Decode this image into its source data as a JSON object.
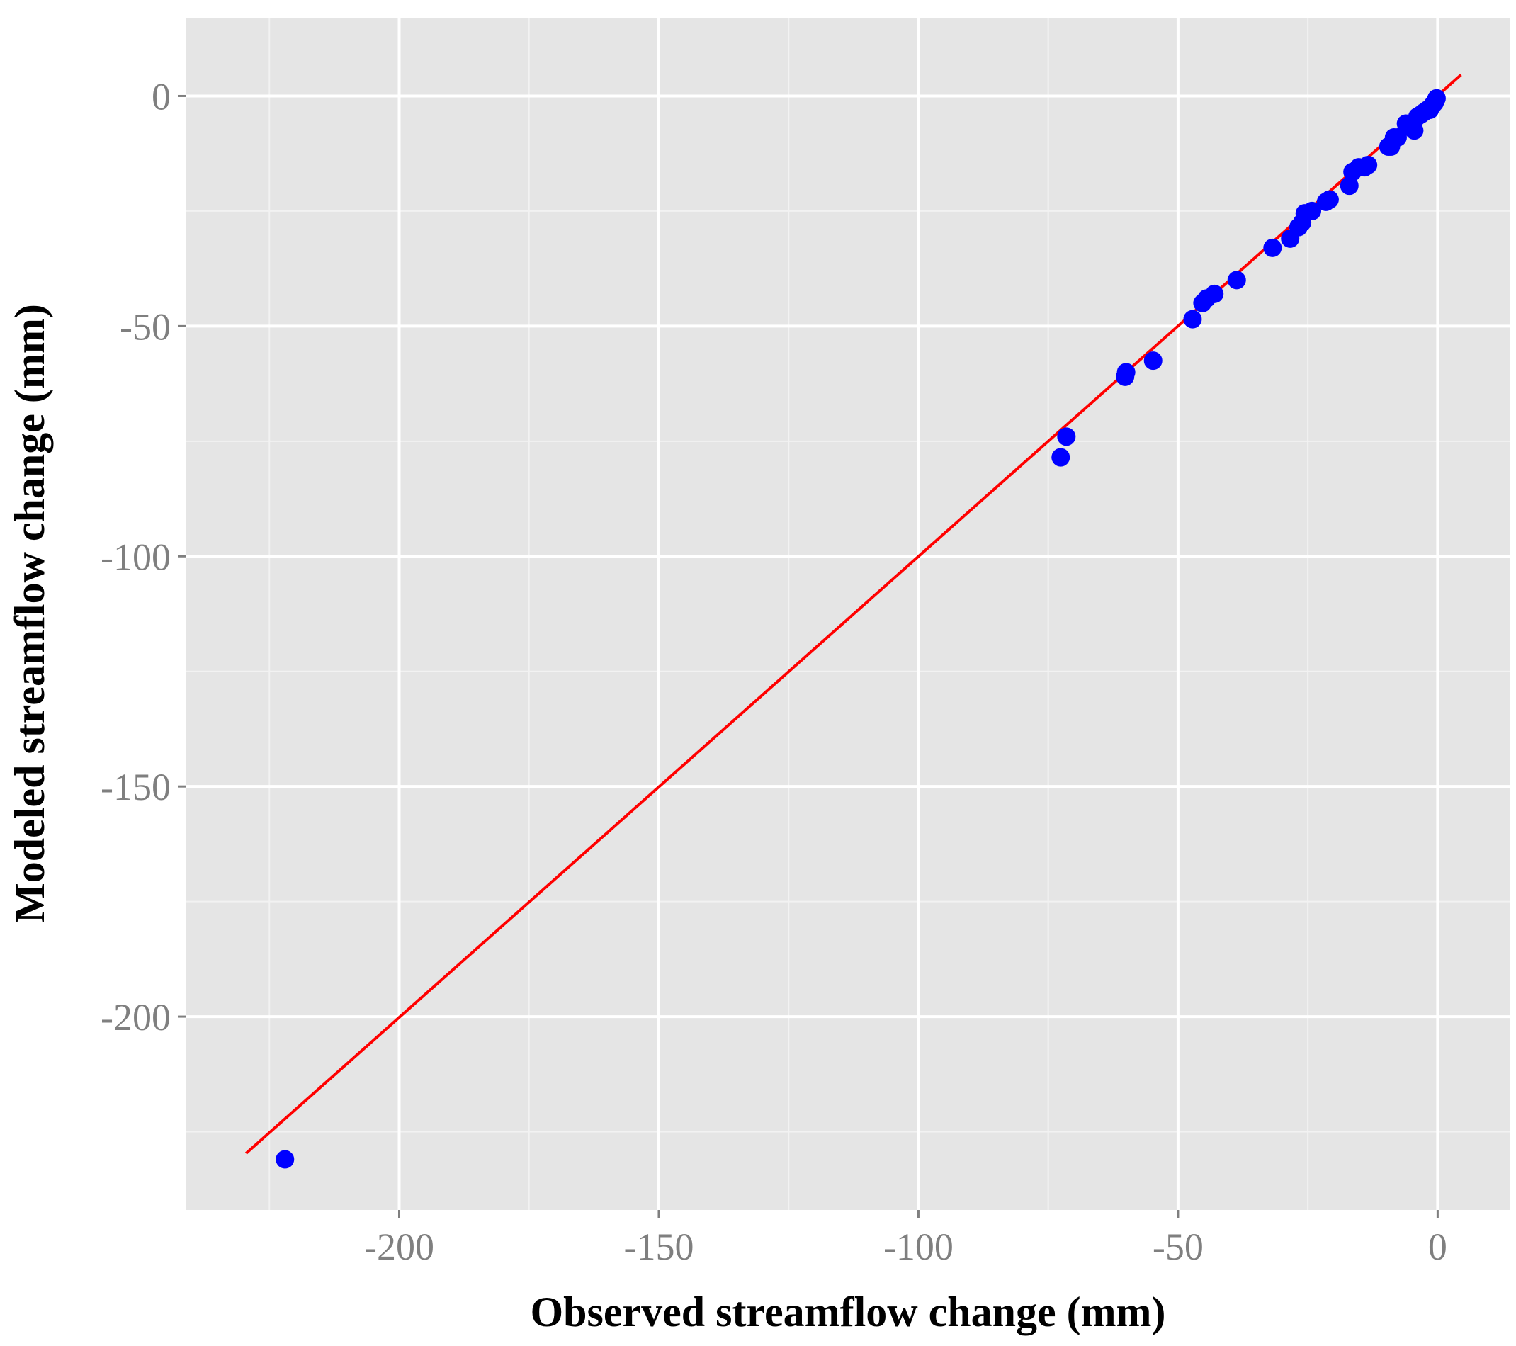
{
  "chart_data": {
    "type": "scatter",
    "title": "",
    "xlabel": "Observed streamflow change (mm)",
    "ylabel": "Modeled streamflow change (mm)",
    "xlim": [
      -241,
      14
    ],
    "ylim": [
      -242,
      17
    ],
    "x_ticks": [
      -200,
      -150,
      -100,
      -50,
      0
    ],
    "y_ticks": [
      0,
      -50,
      -100,
      -150,
      -200
    ],
    "x_minor_ticks": [
      -225,
      -175,
      -125,
      -75,
      -25
    ],
    "y_minor_ticks": [
      -25,
      -75,
      -125,
      -175,
      -225
    ],
    "grid": true,
    "legend": "none",
    "colors": {
      "panel": "#e5e5e5",
      "grid_major": "#ffffff",
      "grid_minor": "#f2f2f2",
      "points": "#0000ff",
      "fit_line": "#ff0000"
    },
    "series": [
      {
        "type": "scatter",
        "x": [
          -222,
          -72.6,
          -71.5,
          -60.2,
          -60,
          -54.8,
          -47.2,
          -45.3,
          -44.5,
          -43,
          -38.7,
          -31.8,
          -28.4,
          -26.8,
          -26.1,
          -25.6,
          -24.2,
          -21.5,
          -20.8,
          -17,
          -16.4,
          -15.2,
          -14.1,
          -13.4,
          -9.5,
          -9,
          -8.4,
          -7.7,
          -6.1,
          -5,
          -4.5,
          -3.9,
          -3.2,
          -2.6,
          -2,
          -1.5,
          -1,
          -0.6,
          -0.4,
          -0.2
        ],
        "y": [
          -231,
          -78.5,
          -74,
          -61,
          -60,
          -57.5,
          -48.5,
          -45,
          -44,
          -43,
          -40,
          -33,
          -31,
          -28.5,
          -27.5,
          -25.5,
          -25,
          -23,
          -22.5,
          -19.5,
          -16.5,
          -15.5,
          -15.5,
          -15,
          -11,
          -11,
          -9,
          -9,
          -6,
          -6.5,
          -7.5,
          -4.5,
          -4,
          -3.5,
          -3,
          -3,
          -2,
          -1.5,
          -1,
          -0.5
        ]
      },
      {
        "type": "line",
        "x": [
          -229.5,
          4.5
        ],
        "y": [
          -229.7,
          4.6
        ]
      }
    ]
  }
}
